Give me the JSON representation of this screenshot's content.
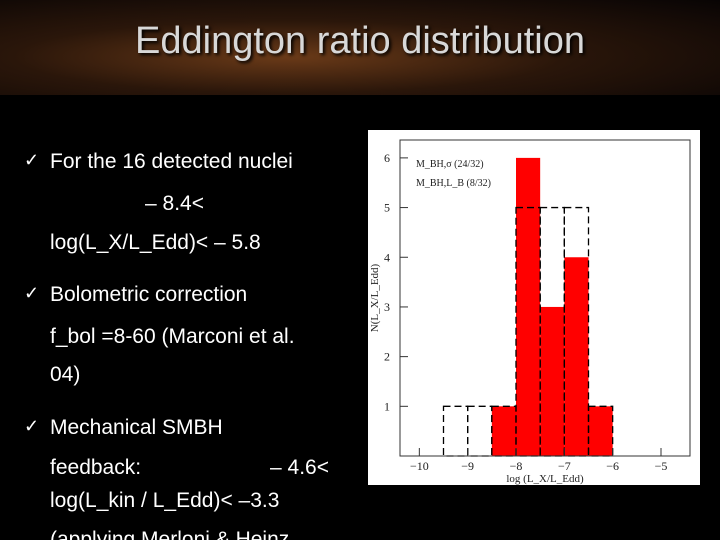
{
  "slide": {
    "title": "Eddington ratio distribution",
    "bullets": [
      {
        "lines": [
          "For the 16 detected nuclei",
          "– 8.4<",
          "log(L_X/L_Edd)< – 5.8"
        ]
      },
      {
        "lines": [
          "Bolometric correction",
          "f_bol =8-60 (Marconi et al.",
          "04)"
        ]
      },
      {
        "lines": [
          "Mechanical SMBH",
          "feedback:",
          "– 4.6<",
          "log(L_kin / L_Edd)< –3.3",
          "(applying Merloni & Heinz"
        ]
      }
    ]
  },
  "chart_data": {
    "type": "histogram",
    "xlabel": "log (L_X/L_Edd)",
    "ylabel": "N(L_X/L_Edd)",
    "bins": [
      -9.5,
      -9,
      -8.5,
      -8,
      -7.5,
      -7,
      -6.5,
      -6
    ],
    "series": [
      {
        "name": "M_BH,σ (24/32)",
        "color": "#ff0000",
        "style": "filled",
        "values": [
          0,
          0,
          1,
          6,
          3,
          4,
          1
        ]
      },
      {
        "name": "M_BH,L_B (8/32)",
        "color": "#000000",
        "style": "dashed",
        "values": [
          1,
          1,
          1,
          5,
          5,
          5,
          1
        ]
      }
    ],
    "xlim": [
      -10.4,
      -4.4
    ],
    "ylim": [
      0,
      6.36
    ],
    "xticks": [
      {
        "value": -10,
        "label": "−10"
      },
      {
        "value": -9,
        "label": "−9"
      },
      {
        "value": -8,
        "label": "−8"
      },
      {
        "value": -7,
        "label": "−7"
      },
      {
        "value": -6,
        "label": "−6"
      },
      {
        "value": -5,
        "label": "−5"
      }
    ],
    "yticks": [
      1,
      2,
      3,
      4,
      5,
      6
    ]
  }
}
